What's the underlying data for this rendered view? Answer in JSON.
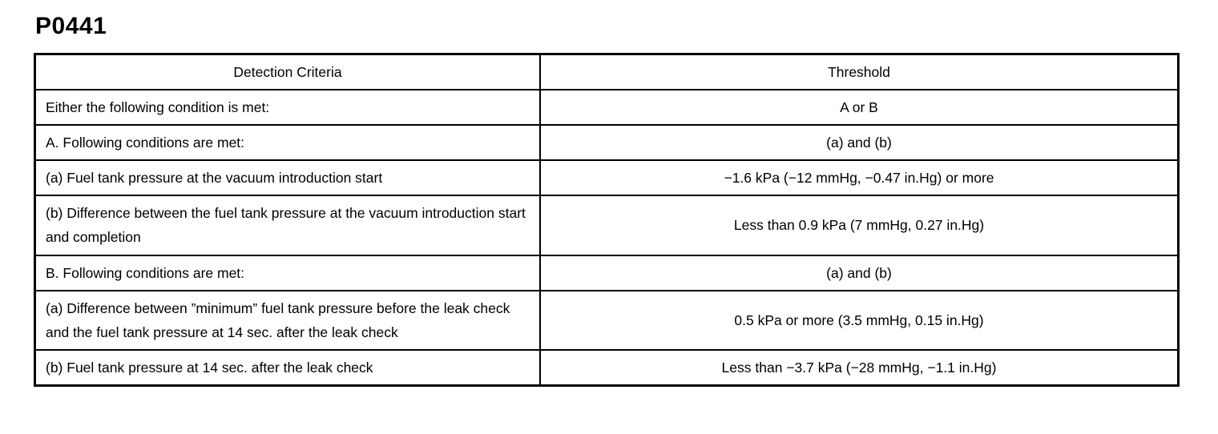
{
  "page": {
    "title": "P0441"
  },
  "table": {
    "headers": [
      "Detection Criteria",
      "Threshold"
    ],
    "rows": [
      {
        "criteria": "Either the following condition is met:",
        "threshold": "A or B"
      },
      {
        "criteria": "A. Following conditions are met:",
        "threshold": "(a) and (b)"
      },
      {
        "criteria": "(a) Fuel tank pressure at the vacuum introduction start",
        "threshold": "−1.6 kPa (−12 mmHg, −0.47 in.Hg) or more"
      },
      {
        "criteria": "(b) Difference between the fuel tank pressure at the vacuum introduction start and completion",
        "threshold": "Less than 0.9 kPa (7 mmHg, 0.27 in.Hg)"
      },
      {
        "criteria": "B. Following conditions are met:",
        "threshold": "(a) and (b)"
      },
      {
        "criteria": "(a) Difference between ”minimum” fuel tank pressure before the leak check and the fuel tank pressure at 14 sec. after the leak check",
        "threshold": "0.5 kPa or more (3.5 mmHg, 0.15 in.Hg)"
      },
      {
        "criteria": "(b) Fuel tank pressure at 14 sec. after the leak check",
        "threshold": "Less than −3.7 kPa (−28 mmHg, −1.1 in.Hg)"
      }
    ]
  }
}
